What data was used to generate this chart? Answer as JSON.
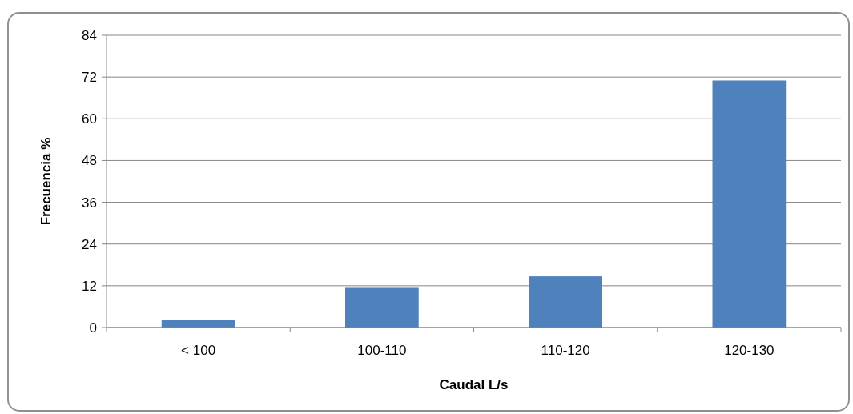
{
  "chart_data": {
    "type": "bar",
    "xlabel": "Caudal L/s",
    "ylabel": "Frecuencia %",
    "categories": [
      "< 100",
      "100-110",
      "110-120",
      "120-130"
    ],
    "values": [
      2.2,
      11.4,
      14.7,
      71
    ],
    "color": "#4f81bd",
    "ylim": [
      0,
      84
    ],
    "yticks": [
      0,
      12,
      24,
      36,
      48,
      60,
      72,
      84
    ],
    "grid": "y"
  }
}
